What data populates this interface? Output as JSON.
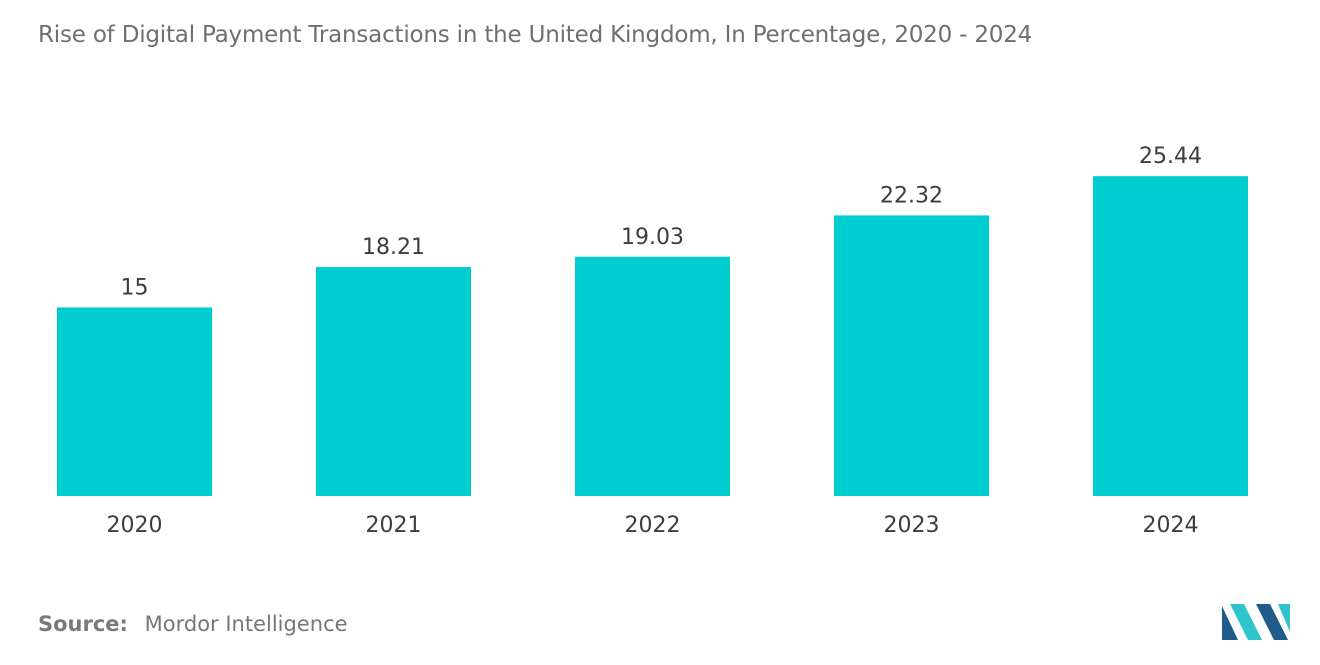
{
  "chart_data": {
    "type": "bar",
    "title": "Rise of Digital Payment Transactions in the United Kingdom, In Percentage, 2020 - 2024",
    "categories": [
      "2020",
      "2021",
      "2022",
      "2023",
      "2024"
    ],
    "values": [
      15,
      18.21,
      19.03,
      22.32,
      25.44
    ],
    "value_labels": [
      "15",
      "18.21",
      "19.03",
      "22.32",
      "25.44"
    ],
    "xlabel": "",
    "ylabel": "",
    "ylim": [
      0,
      31.5
    ],
    "grid": false,
    "legend": "none",
    "bar_color": "#00cdd0"
  },
  "footer": {
    "source_label": "Source:",
    "source_value": "Mordor Intelligence"
  },
  "logo": {
    "icon": "mordor-intelligence-logo-icon",
    "color_dark": "#1f5c8c",
    "color_light": "#2ec4c9"
  }
}
